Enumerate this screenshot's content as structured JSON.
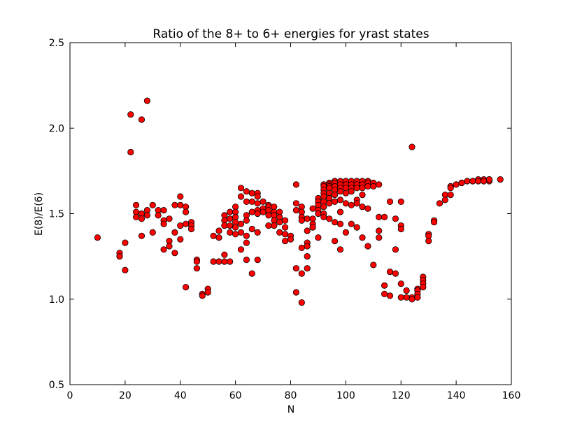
{
  "chart_data": {
    "type": "scatter",
    "title": "Ratio of the 8+ to 6+ energies for yrast states",
    "xlabel": "N",
    "ylabel": "E(8)/E(6)",
    "xlim": [
      0,
      160
    ],
    "ylim": [
      0.5,
      2.5
    ],
    "xticks": [
      "0",
      "20",
      "40",
      "60",
      "80",
      "100",
      "120",
      "140",
      "160"
    ],
    "yticks": [
      "0.5",
      "1.0",
      "1.5",
      "2.0",
      "2.5"
    ],
    "grid": false,
    "marker_color": "#ff0000",
    "marker_edge": "#000000",
    "points": [
      [
        10,
        1.36
      ],
      [
        18,
        1.27
      ],
      [
        18,
        1.25
      ],
      [
        20,
        1.33
      ],
      [
        20,
        1.17
      ],
      [
        22,
        2.08
      ],
      [
        22,
        1.86
      ],
      [
        24,
        1.55
      ],
      [
        24,
        1.51
      ],
      [
        24,
        1.48
      ],
      [
        26,
        2.05
      ],
      [
        26,
        1.5
      ],
      [
        26,
        1.47
      ],
      [
        26,
        1.37
      ],
      [
        28,
        2.16
      ],
      [
        28,
        1.52
      ],
      [
        28,
        1.49
      ],
      [
        30,
        1.55
      ],
      [
        30,
        1.39
      ],
      [
        32,
        1.52
      ],
      [
        32,
        1.49
      ],
      [
        34,
        1.52
      ],
      [
        34,
        1.46
      ],
      [
        34,
        1.44
      ],
      [
        34,
        1.29
      ],
      [
        36,
        1.47
      ],
      [
        36,
        1.34
      ],
      [
        36,
        1.31
      ],
      [
        38,
        1.55
      ],
      [
        38,
        1.39
      ],
      [
        38,
        1.27
      ],
      [
        40,
        1.6
      ],
      [
        40,
        1.55
      ],
      [
        40,
        1.43
      ],
      [
        40,
        1.35
      ],
      [
        42,
        1.54
      ],
      [
        42,
        1.51
      ],
      [
        42,
        1.44
      ],
      [
        42,
        1.07
      ],
      [
        44,
        1.45
      ],
      [
        44,
        1.43
      ],
      [
        44,
        1.41
      ],
      [
        46,
        1.23
      ],
      [
        46,
        1.22
      ],
      [
        46,
        1.18
      ],
      [
        48,
        1.03
      ],
      [
        48,
        1.02
      ],
      [
        50,
        1.06
      ],
      [
        50,
        1.04
      ],
      [
        52,
        1.37
      ],
      [
        52,
        1.22
      ],
      [
        54,
        1.4
      ],
      [
        54,
        1.36
      ],
      [
        54,
        1.22
      ],
      [
        56,
        1.49
      ],
      [
        56,
        1.46
      ],
      [
        56,
        1.43
      ],
      [
        56,
        1.26
      ],
      [
        56,
        1.22
      ],
      [
        58,
        1.51
      ],
      [
        58,
        1.47
      ],
      [
        58,
        1.43
      ],
      [
        58,
        1.39
      ],
      [
        58,
        1.22
      ],
      [
        60,
        1.54
      ],
      [
        60,
        1.51
      ],
      [
        60,
        1.48
      ],
      [
        60,
        1.45
      ],
      [
        60,
        1.42
      ],
      [
        60,
        1.38
      ],
      [
        62,
        1.65
      ],
      [
        62,
        1.6
      ],
      [
        62,
        1.44
      ],
      [
        62,
        1.39
      ],
      [
        62,
        1.29
      ],
      [
        64,
        1.63
      ],
      [
        64,
        1.57
      ],
      [
        64,
        1.49
      ],
      [
        64,
        1.46
      ],
      [
        64,
        1.37
      ],
      [
        64,
        1.33
      ],
      [
        64,
        1.23
      ],
      [
        66,
        1.62
      ],
      [
        66,
        1.57
      ],
      [
        66,
        1.51
      ],
      [
        66,
        1.41
      ],
      [
        66,
        1.15
      ],
      [
        68,
        1.62
      ],
      [
        68,
        1.6
      ],
      [
        68,
        1.56
      ],
      [
        68,
        1.52
      ],
      [
        68,
        1.5
      ],
      [
        68,
        1.39
      ],
      [
        68,
        1.23
      ],
      [
        70,
        1.57
      ],
      [
        70,
        1.53
      ],
      [
        70,
        1.51
      ],
      [
        72,
        1.55
      ],
      [
        72,
        1.54
      ],
      [
        72,
        1.52
      ],
      [
        72,
        1.49
      ],
      [
        72,
        1.43
      ],
      [
        74,
        1.54
      ],
      [
        74,
        1.51
      ],
      [
        74,
        1.49
      ],
      [
        74,
        1.46
      ],
      [
        74,
        1.43
      ],
      [
        76,
        1.51
      ],
      [
        76,
        1.48
      ],
      [
        76,
        1.45
      ],
      [
        76,
        1.39
      ],
      [
        78,
        1.46
      ],
      [
        78,
        1.42
      ],
      [
        78,
        1.38
      ],
      [
        78,
        1.34
      ],
      [
        80,
        1.37
      ],
      [
        80,
        1.35
      ],
      [
        82,
        1.67
      ],
      [
        82,
        1.56
      ],
      [
        82,
        1.52
      ],
      [
        82,
        1.18
      ],
      [
        82,
        1.04
      ],
      [
        84,
        1.54
      ],
      [
        84,
        1.51
      ],
      [
        84,
        1.48
      ],
      [
        84,
        1.46
      ],
      [
        84,
        1.3
      ],
      [
        84,
        1.15
      ],
      [
        84,
        0.98
      ],
      [
        86,
        1.47
      ],
      [
        86,
        1.4
      ],
      [
        86,
        1.33
      ],
      [
        86,
        1.31
      ],
      [
        86,
        1.25
      ],
      [
        86,
        1.18
      ],
      [
        88,
        1.53
      ],
      [
        88,
        1.47
      ],
      [
        88,
        1.44
      ],
      [
        88,
        1.42
      ],
      [
        90,
        1.59
      ],
      [
        90,
        1.57
      ],
      [
        90,
        1.55
      ],
      [
        90,
        1.52
      ],
      [
        90,
        1.5
      ],
      [
        90,
        1.36
      ],
      [
        92,
        1.67
      ],
      [
        92,
        1.66
      ],
      [
        92,
        1.64
      ],
      [
        92,
        1.62
      ],
      [
        92,
        1.6
      ],
      [
        92,
        1.57
      ],
      [
        92,
        1.54
      ],
      [
        92,
        1.5
      ],
      [
        92,
        1.48
      ],
      [
        94,
        1.68
      ],
      [
        94,
        1.67
      ],
      [
        94,
        1.66
      ],
      [
        94,
        1.65
      ],
      [
        94,
        1.62
      ],
      [
        94,
        1.59
      ],
      [
        94,
        1.56
      ],
      [
        94,
        1.47
      ],
      [
        96,
        1.69
      ],
      [
        96,
        1.68
      ],
      [
        96,
        1.66
      ],
      [
        96,
        1.64
      ],
      [
        96,
        1.61
      ],
      [
        96,
        1.57
      ],
      [
        96,
        1.45
      ],
      [
        96,
        1.34
      ],
      [
        98,
        1.69
      ],
      [
        98,
        1.67
      ],
      [
        98,
        1.65
      ],
      [
        98,
        1.63
      ],
      [
        98,
        1.58
      ],
      [
        98,
        1.51
      ],
      [
        98,
        1.44
      ],
      [
        98,
        1.29
      ],
      [
        100,
        1.69
      ],
      [
        100,
        1.67
      ],
      [
        100,
        1.65
      ],
      [
        100,
        1.62
      ],
      [
        100,
        1.56
      ],
      [
        100,
        1.39
      ],
      [
        102,
        1.69
      ],
      [
        102,
        1.67
      ],
      [
        102,
        1.65
      ],
      [
        102,
        1.63
      ],
      [
        102,
        1.55
      ],
      [
        102,
        1.44
      ],
      [
        104,
        1.69
      ],
      [
        104,
        1.67
      ],
      [
        104,
        1.65
      ],
      [
        104,
        1.58
      ],
      [
        104,
        1.56
      ],
      [
        104,
        1.42
      ],
      [
        106,
        1.69
      ],
      [
        106,
        1.67
      ],
      [
        106,
        1.65
      ],
      [
        106,
        1.61
      ],
      [
        106,
        1.54
      ],
      [
        106,
        1.36
      ],
      [
        108,
        1.69
      ],
      [
        108,
        1.68
      ],
      [
        108,
        1.66
      ],
      [
        108,
        1.53
      ],
      [
        108,
        1.31
      ],
      [
        110,
        1.68
      ],
      [
        110,
        1.66
      ],
      [
        110,
        1.2
      ],
      [
        112,
        1.67
      ],
      [
        112,
        1.48
      ],
      [
        112,
        1.4
      ],
      [
        112,
        1.36
      ],
      [
        114,
        1.48
      ],
      [
        114,
        1.08
      ],
      [
        114,
        1.03
      ],
      [
        116,
        1.57
      ],
      [
        116,
        1.16
      ],
      [
        116,
        1.02
      ],
      [
        118,
        1.47
      ],
      [
        118,
        1.29
      ],
      [
        118,
        1.15
      ],
      [
        120,
        1.57
      ],
      [
        120,
        1.43
      ],
      [
        120,
        1.41
      ],
      [
        120,
        1.09
      ],
      [
        120,
        1.01
      ],
      [
        122,
        1.05
      ],
      [
        122,
        1.01
      ],
      [
        124,
        1.89
      ],
      [
        124,
        1.01
      ],
      [
        124,
        1.0
      ],
      [
        126,
        1.06
      ],
      [
        126,
        1.05
      ],
      [
        126,
        1.03
      ],
      [
        126,
        1.01
      ],
      [
        128,
        1.13
      ],
      [
        128,
        1.11
      ],
      [
        128,
        1.09
      ],
      [
        128,
        1.07
      ],
      [
        130,
        1.38
      ],
      [
        130,
        1.37
      ],
      [
        130,
        1.34
      ],
      [
        132,
        1.46
      ],
      [
        132,
        1.45
      ],
      [
        134,
        1.56
      ],
      [
        136,
        1.61
      ],
      [
        136,
        1.58
      ],
      [
        138,
        1.66
      ],
      [
        138,
        1.65
      ],
      [
        138,
        1.61
      ],
      [
        140,
        1.67
      ],
      [
        142,
        1.68
      ],
      [
        142,
        1.68
      ],
      [
        144,
        1.69
      ],
      [
        146,
        1.69
      ],
      [
        146,
        1.69
      ],
      [
        148,
        1.7
      ],
      [
        148,
        1.69
      ],
      [
        150,
        1.7
      ],
      [
        150,
        1.69
      ],
      [
        152,
        1.7
      ],
      [
        152,
        1.69
      ],
      [
        152,
        1.7
      ],
      [
        156,
        1.7
      ]
    ]
  }
}
